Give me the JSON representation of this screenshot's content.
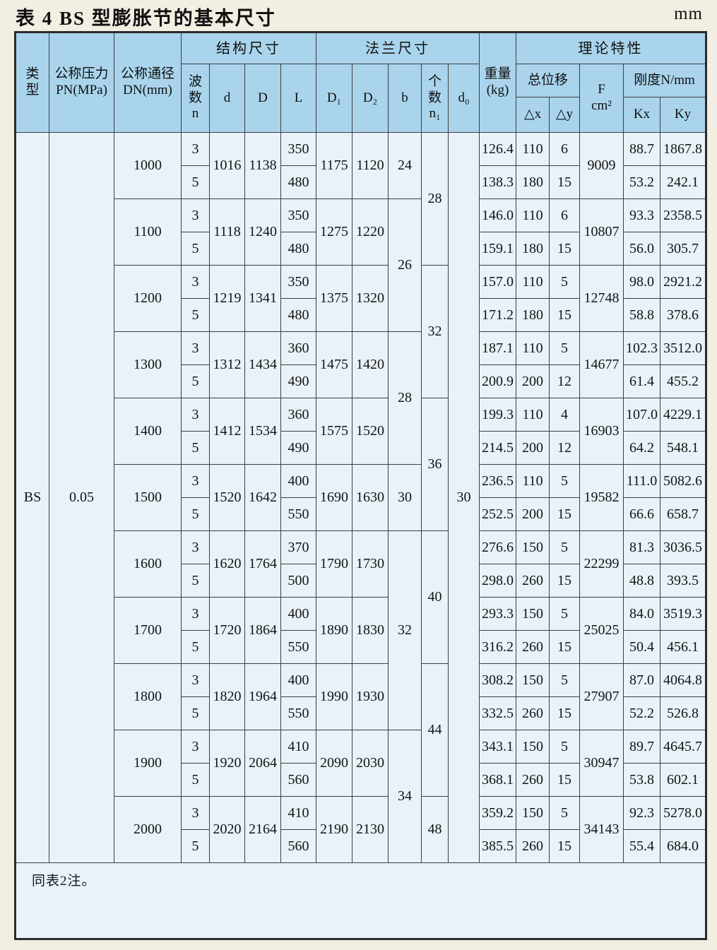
{
  "page": {
    "title": "表 4 BS 型膨胀节的基本尺寸",
    "unit": "mm"
  },
  "table": {
    "header": {
      "type": "类\n型",
      "pn": "公称压力\nPN(MPa)",
      "dn": "公称通径\nDN(mm)",
      "struct_group": "结构尺寸",
      "wave": "波\n数\nn",
      "d": "d",
      "D": "D",
      "L": "L",
      "flange_group": "法兰尺寸",
      "D1": "D₁",
      "D2": "D₂",
      "b": "b",
      "count": "个\n数\nn₁",
      "d0": "d₀",
      "weight": "重量\n(kg)",
      "theory_group": "理论特性",
      "disp_group": "总位移",
      "dx": "△x",
      "dy": "△y",
      "F": "F\ncm²",
      "stiff_group": "刚度N/mm",
      "Kx": "Kx",
      "Ky": "Ky"
    },
    "type_value": "BS",
    "pn_value": "0.05",
    "d0_value": "30",
    "note": "同表2注。",
    "groups": [
      {
        "dn": "1000",
        "d": "1016",
        "D": "1138",
        "D1": "1175",
        "D2": "1120",
        "F": "9009",
        "sub": [
          {
            "n": "3",
            "L": "350",
            "wt": "126.4",
            "dx": "110",
            "dy": "6",
            "Kx": "88.7",
            "Ky": "1867.8"
          },
          {
            "n": "5",
            "L": "480",
            "wt": "138.3",
            "dx": "180",
            "dy": "15",
            "Kx": "53.2",
            "Ky": "242.1"
          }
        ]
      },
      {
        "dn": "1100",
        "d": "1118",
        "D": "1240",
        "D1": "1275",
        "D2": "1220",
        "F": "10807",
        "sub": [
          {
            "n": "3",
            "L": "350",
            "wt": "146.0",
            "dx": "110",
            "dy": "6",
            "Kx": "93.3",
            "Ky": "2358.5"
          },
          {
            "n": "5",
            "L": "480",
            "wt": "159.1",
            "dx": "180",
            "dy": "15",
            "Kx": "56.0",
            "Ky": "305.7"
          }
        ]
      },
      {
        "dn": "1200",
        "d": "1219",
        "D": "1341",
        "D1": "1375",
        "D2": "1320",
        "F": "12748",
        "sub": [
          {
            "n": "3",
            "L": "350",
            "wt": "157.0",
            "dx": "110",
            "dy": "5",
            "Kx": "98.0",
            "Ky": "2921.2"
          },
          {
            "n": "5",
            "L": "480",
            "wt": "171.2",
            "dx": "180",
            "dy": "15",
            "Kx": "58.8",
            "Ky": "378.6"
          }
        ]
      },
      {
        "dn": "1300",
        "d": "1312",
        "D": "1434",
        "D1": "1475",
        "D2": "1420",
        "F": "14677",
        "sub": [
          {
            "n": "3",
            "L": "360",
            "wt": "187.1",
            "dx": "110",
            "dy": "5",
            "Kx": "102.3",
            "Ky": "3512.0"
          },
          {
            "n": "5",
            "L": "490",
            "wt": "200.9",
            "dx": "200",
            "dy": "12",
            "Kx": "61.4",
            "Ky": "455.2"
          }
        ]
      },
      {
        "dn": "1400",
        "d": "1412",
        "D": "1534",
        "D1": "1575",
        "D2": "1520",
        "F": "16903",
        "sub": [
          {
            "n": "3",
            "L": "360",
            "wt": "199.3",
            "dx": "110",
            "dy": "4",
            "Kx": "107.0",
            "Ky": "4229.1"
          },
          {
            "n": "5",
            "L": "490",
            "wt": "214.5",
            "dx": "200",
            "dy": "12",
            "Kx": "64.2",
            "Ky": "548.1"
          }
        ]
      },
      {
        "dn": "1500",
        "d": "1520",
        "D": "1642",
        "D1": "1690",
        "D2": "1630",
        "F": "19582",
        "sub": [
          {
            "n": "3",
            "L": "400",
            "wt": "236.5",
            "dx": "110",
            "dy": "5",
            "Kx": "111.0",
            "Ky": "5082.6"
          },
          {
            "n": "5",
            "L": "550",
            "wt": "252.5",
            "dx": "200",
            "dy": "15",
            "Kx": "66.6",
            "Ky": "658.7"
          }
        ]
      },
      {
        "dn": "1600",
        "d": "1620",
        "D": "1764",
        "D1": "1790",
        "D2": "1730",
        "F": "22299",
        "sub": [
          {
            "n": "3",
            "L": "370",
            "wt": "276.6",
            "dx": "150",
            "dy": "5",
            "Kx": "81.3",
            "Ky": "3036.5"
          },
          {
            "n": "5",
            "L": "500",
            "wt": "298.0",
            "dx": "260",
            "dy": "15",
            "Kx": "48.8",
            "Ky": "393.5"
          }
        ]
      },
      {
        "dn": "1700",
        "d": "1720",
        "D": "1864",
        "D1": "1890",
        "D2": "1830",
        "F": "25025",
        "sub": [
          {
            "n": "3",
            "L": "400",
            "wt": "293.3",
            "dx": "150",
            "dy": "5",
            "Kx": "84.0",
            "Ky": "3519.3"
          },
          {
            "n": "5",
            "L": "550",
            "wt": "316.2",
            "dx": "260",
            "dy": "15",
            "Kx": "50.4",
            "Ky": "456.1"
          }
        ]
      },
      {
        "dn": "1800",
        "d": "1820",
        "D": "1964",
        "D1": "1990",
        "D2": "1930",
        "F": "27907",
        "sub": [
          {
            "n": "3",
            "L": "400",
            "wt": "308.2",
            "dx": "150",
            "dy": "5",
            "Kx": "87.0",
            "Ky": "4064.8"
          },
          {
            "n": "5",
            "L": "550",
            "wt": "332.5",
            "dx": "260",
            "dy": "15",
            "Kx": "52.2",
            "Ky": "526.8"
          }
        ]
      },
      {
        "dn": "1900",
        "d": "1920",
        "D": "2064",
        "D1": "2090",
        "D2": "2030",
        "F": "30947",
        "sub": [
          {
            "n": "3",
            "L": "410",
            "wt": "343.1",
            "dx": "150",
            "dy": "5",
            "Kx": "89.7",
            "Ky": "4645.7"
          },
          {
            "n": "5",
            "L": "560",
            "wt": "368.1",
            "dx": "260",
            "dy": "15",
            "Kx": "53.8",
            "Ky": "602.1"
          }
        ]
      },
      {
        "dn": "2000",
        "d": "2020",
        "D": "2164",
        "D1": "2190",
        "D2": "2130",
        "F": "34143",
        "sub": [
          {
            "n": "3",
            "L": "410",
            "wt": "359.2",
            "dx": "150",
            "dy": "5",
            "Kx": "92.3",
            "Ky": "5278.0"
          },
          {
            "n": "5",
            "L": "560",
            "wt": "385.5",
            "dx": "260",
            "dy": "15",
            "Kx": "55.4",
            "Ky": "684.0"
          }
        ]
      }
    ],
    "b_spans": [
      {
        "value": "24",
        "rows": 2
      },
      {
        "value": "26",
        "rows": 4
      },
      {
        "value": "28",
        "rows": 4
      },
      {
        "value": "30",
        "rows": 2
      },
      {
        "value": "32",
        "rows": 6
      },
      {
        "value": "34",
        "rows": 4
      }
    ],
    "n1_spans": [
      {
        "value": "28",
        "rows": 4
      },
      {
        "value": "32",
        "rows": 4
      },
      {
        "value": "36",
        "rows": 4
      },
      {
        "value": "40",
        "rows": 4
      },
      {
        "value": "44",
        "rows": 4
      },
      {
        "value": "48",
        "rows": 2
      }
    ]
  },
  "colors": {
    "header_bg": "#a9d4ec",
    "cell_bg": "#e8f2f8",
    "paper_bg": "#f3eee2",
    "border": "#3e3e3e"
  }
}
